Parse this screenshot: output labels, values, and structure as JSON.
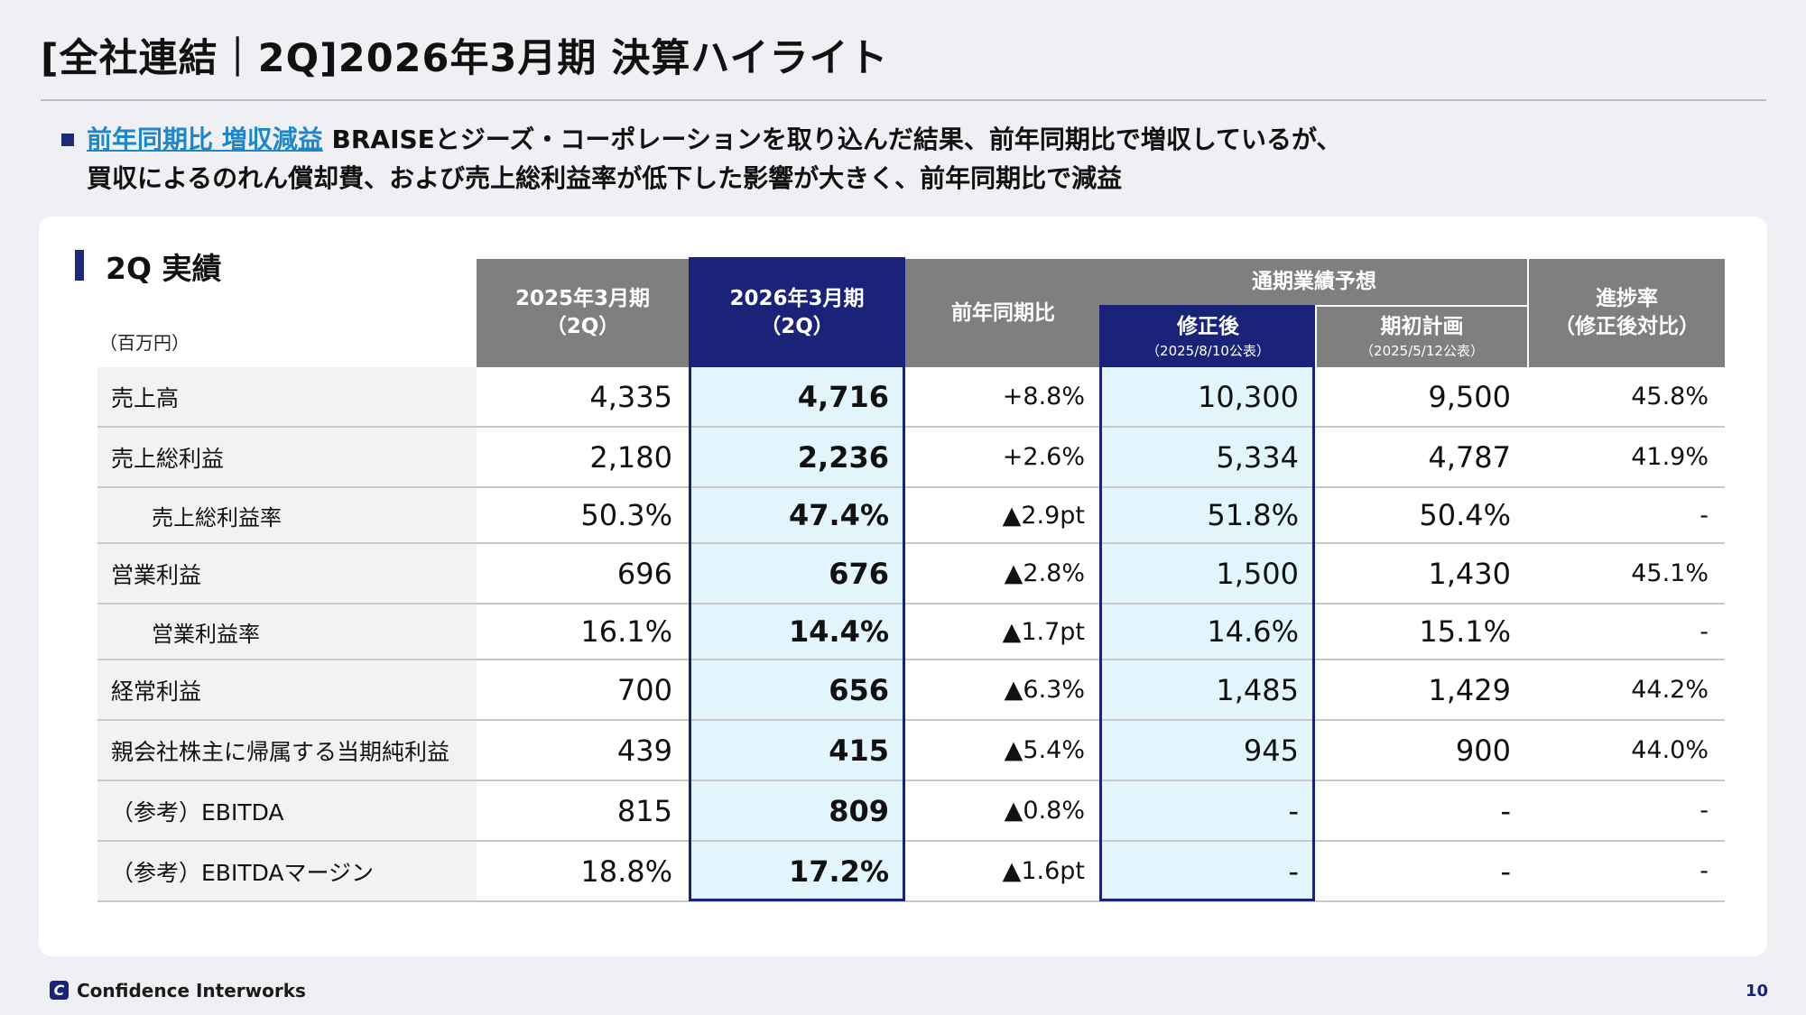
{
  "title": "[全社連結｜2Q]2026年3月期 決算ハイライト",
  "lead": {
    "highlight": "前年同期比 増収減益",
    "line1": " BRAISEとジーズ・コーポレーションを取り込んだ結果、前年同期比で増収しているが、",
    "line2": "買収によるのれん償却費、および売上総利益率が低下した影響が大きく、前年同期比で減益"
  },
  "section_title": "2Q 実績",
  "unit_label": "（百万円）",
  "headers": {
    "prev": {
      "line1": "2025年3月期",
      "line2": "（2Q）"
    },
    "curr": {
      "line1": "2026年3月期",
      "line2": "（2Q）"
    },
    "yoy": "前年同期比",
    "forecast_group": "通期業績予想",
    "revised": {
      "line1": "修正後",
      "line2": "（2025/8/10公表）"
    },
    "initial": {
      "line1": "期初計画",
      "line2": "（2025/5/12公表）"
    },
    "progress": {
      "line1": "進捗率",
      "line2": "（修正後対比）"
    }
  },
  "rows": [
    {
      "label": "売上高",
      "indent": false,
      "prev": "4,335",
      "curr": "4,716",
      "yoy": "+8.8%",
      "revised": "10,300",
      "initial": "9,500",
      "progress": "45.8%"
    },
    {
      "label": "売上総利益",
      "indent": false,
      "prev": "2,180",
      "curr": "2,236",
      "yoy": "+2.6%",
      "revised": "5,334",
      "initial": "4,787",
      "progress": "41.9%"
    },
    {
      "label": "売上総利益率",
      "indent": true,
      "prev": "50.3%",
      "curr": "47.4%",
      "yoy": "▲2.9pt",
      "revised": "51.8%",
      "initial": "50.4%",
      "progress": "-"
    },
    {
      "label": "営業利益",
      "indent": false,
      "prev": "696",
      "curr": "676",
      "yoy": "▲2.8%",
      "revised": "1,500",
      "initial": "1,430",
      "progress": "45.1%"
    },
    {
      "label": "営業利益率",
      "indent": true,
      "prev": "16.1%",
      "curr": "14.4%",
      "yoy": "▲1.7pt",
      "revised": "14.6%",
      "initial": "15.1%",
      "progress": "-"
    },
    {
      "label": "経常利益",
      "indent": false,
      "prev": "700",
      "curr": "656",
      "yoy": "▲6.3%",
      "revised": "1,485",
      "initial": "1,429",
      "progress": "44.2%"
    },
    {
      "label": "親会社株主に帰属する当期純利益",
      "indent": false,
      "prev": "439",
      "curr": "415",
      "yoy": "▲5.4%",
      "revised": "945",
      "initial": "900",
      "progress": "44.0%"
    },
    {
      "label": "（参考）EBITDA",
      "indent": false,
      "prev": "815",
      "curr": "809",
      "yoy": "▲0.8%",
      "revised": "-",
      "initial": "-",
      "progress": "-"
    },
    {
      "label": "（参考）EBITDAマージン",
      "indent": false,
      "prev": "18.8%",
      "curr": "17.2%",
      "yoy": "▲1.6pt",
      "revised": "-",
      "initial": "-",
      "progress": "-"
    }
  ],
  "footer": {
    "logo_glyph": "C",
    "company": "Confidence Interworks",
    "page_number": "10"
  }
}
